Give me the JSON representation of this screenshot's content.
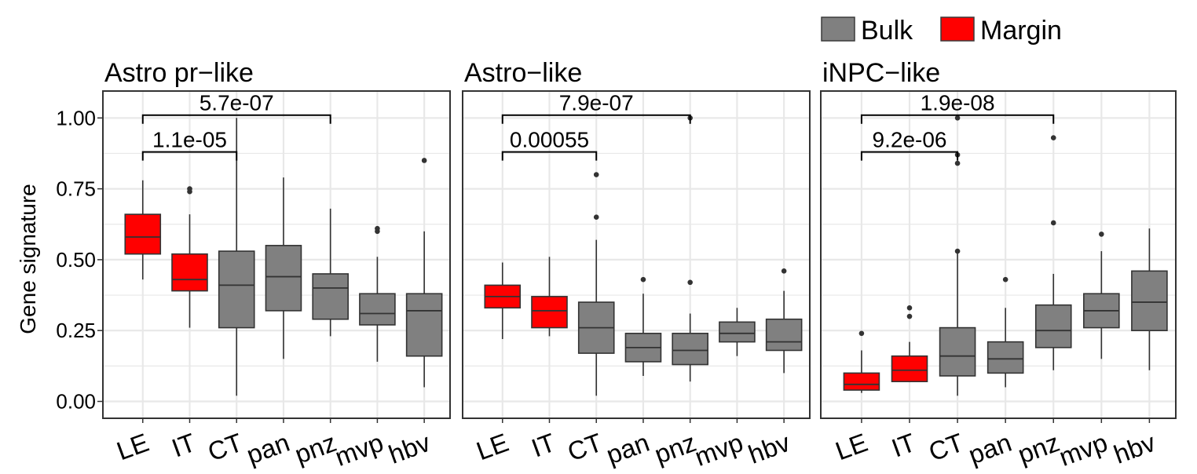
{
  "chart_data": {
    "type": "boxplot",
    "legend": {
      "placement": "top-right",
      "items": [
        {
          "label": "Bulk",
          "color": "#808080"
        },
        {
          "label": "Margin",
          "color": "#ff0000"
        }
      ]
    },
    "ylabel": "Gene signature",
    "yticks": [
      "0.00",
      "0.25",
      "0.50",
      "0.75",
      "1.00"
    ],
    "ylim": [
      -0.03,
      1.13
    ],
    "grid": true,
    "categories": [
      "LE",
      "IT",
      "CT",
      "pan",
      "pnz",
      "mvp",
      "hbv"
    ],
    "group_of_category": [
      "Margin",
      "Margin",
      "Bulk",
      "Bulk",
      "Bulk",
      "Bulk",
      "Bulk"
    ],
    "panels": [
      {
        "title": "Astro pr−like",
        "boxes": [
          {
            "category": "LE",
            "whisker_low": 0.43,
            "q1": 0.52,
            "median": 0.58,
            "q3": 0.66,
            "whisker_high": 0.78,
            "outliers": []
          },
          {
            "category": "IT",
            "whisker_low": 0.26,
            "q1": 0.39,
            "median": 0.43,
            "q3": 0.52,
            "whisker_high": 0.66,
            "outliers": [
              0.74,
              0.75
            ]
          },
          {
            "category": "CT",
            "whisker_low": 0.02,
            "q1": 0.26,
            "median": 0.41,
            "q3": 0.53,
            "whisker_high": 1.0,
            "outliers": []
          },
          {
            "category": "pan",
            "whisker_low": 0.15,
            "q1": 0.32,
            "median": 0.44,
            "q3": 0.55,
            "whisker_high": 0.79,
            "outliers": []
          },
          {
            "category": "pnz",
            "whisker_low": 0.23,
            "q1": 0.29,
            "median": 0.4,
            "q3": 0.45,
            "whisker_high": 0.68,
            "outliers": []
          },
          {
            "category": "mvp",
            "whisker_low": 0.14,
            "q1": 0.27,
            "median": 0.31,
            "q3": 0.38,
            "whisker_high": 0.51,
            "outliers": [
              0.6,
              0.61
            ]
          },
          {
            "category": "hbv",
            "whisker_low": 0.05,
            "q1": 0.16,
            "median": 0.32,
            "q3": 0.38,
            "whisker_high": 0.6,
            "outliers": [
              0.85
            ]
          }
        ],
        "brackets": [
          {
            "from": "LE",
            "to": "pnz",
            "y": 1.01,
            "label": "5.7e-07"
          },
          {
            "from": "LE",
            "to": "CT",
            "y": 0.88,
            "label": "1.1e-05"
          }
        ]
      },
      {
        "title": "Astro−like",
        "boxes": [
          {
            "category": "LE",
            "whisker_low": 0.22,
            "q1": 0.33,
            "median": 0.37,
            "q3": 0.41,
            "whisker_high": 0.49,
            "outliers": []
          },
          {
            "category": "IT",
            "whisker_low": 0.23,
            "q1": 0.26,
            "median": 0.32,
            "q3": 0.37,
            "whisker_high": 0.51,
            "outliers": []
          },
          {
            "category": "CT",
            "whisker_low": 0.02,
            "q1": 0.17,
            "median": 0.26,
            "q3": 0.35,
            "whisker_high": 0.57,
            "outliers": [
              0.65,
              0.8
            ]
          },
          {
            "category": "pan",
            "whisker_low": 0.09,
            "q1": 0.14,
            "median": 0.19,
            "q3": 0.24,
            "whisker_high": 0.38,
            "outliers": [
              0.43
            ]
          },
          {
            "category": "pnz",
            "whisker_low": 0.07,
            "q1": 0.13,
            "median": 0.18,
            "q3": 0.24,
            "whisker_high": 0.31,
            "outliers": [
              0.42,
              1.0
            ]
          },
          {
            "category": "mvp",
            "whisker_low": 0.16,
            "q1": 0.21,
            "median": 0.24,
            "q3": 0.28,
            "whisker_high": 0.33,
            "outliers": []
          },
          {
            "category": "hbv",
            "whisker_low": 0.1,
            "q1": 0.18,
            "median": 0.21,
            "q3": 0.29,
            "whisker_high": 0.39,
            "outliers": [
              0.46
            ]
          }
        ],
        "brackets": [
          {
            "from": "LE",
            "to": "pnz",
            "y": 1.01,
            "label": "7.9e-07"
          },
          {
            "from": "LE",
            "to": "CT",
            "y": 0.88,
            "label": "0.00055"
          }
        ]
      },
      {
        "title": "iNPC−like",
        "boxes": [
          {
            "category": "LE",
            "whisker_low": 0.03,
            "q1": 0.04,
            "median": 0.06,
            "q3": 0.1,
            "whisker_high": 0.18,
            "outliers": [
              0.24
            ]
          },
          {
            "category": "IT",
            "whisker_low": 0.07,
            "q1": 0.07,
            "median": 0.11,
            "q3": 0.16,
            "whisker_high": 0.21,
            "outliers": [
              0.3,
              0.33
            ]
          },
          {
            "category": "CT",
            "whisker_low": 0.02,
            "q1": 0.09,
            "median": 0.16,
            "q3": 0.26,
            "whisker_high": 0.53,
            "outliers": [
              0.53,
              0.84,
              0.87,
              1.0
            ]
          },
          {
            "category": "pan",
            "whisker_low": 0.05,
            "q1": 0.1,
            "median": 0.15,
            "q3": 0.21,
            "whisker_high": 0.33,
            "outliers": [
              0.43
            ]
          },
          {
            "category": "pnz",
            "whisker_low": 0.11,
            "q1": 0.19,
            "median": 0.25,
            "q3": 0.34,
            "whisker_high": 0.45,
            "outliers": [
              0.63,
              0.93
            ]
          },
          {
            "category": "mvp",
            "whisker_low": 0.15,
            "q1": 0.26,
            "median": 0.32,
            "q3": 0.38,
            "whisker_high": 0.53,
            "outliers": [
              0.59
            ]
          },
          {
            "category": "hbv",
            "whisker_low": 0.11,
            "q1": 0.25,
            "median": 0.35,
            "q3": 0.46,
            "whisker_high": 0.61,
            "outliers": []
          }
        ],
        "brackets": [
          {
            "from": "LE",
            "to": "pnz",
            "y": 1.01,
            "label": "1.9e-08"
          },
          {
            "from": "LE",
            "to": "CT",
            "y": 0.88,
            "label": "9.2e-06"
          }
        ]
      }
    ]
  }
}
